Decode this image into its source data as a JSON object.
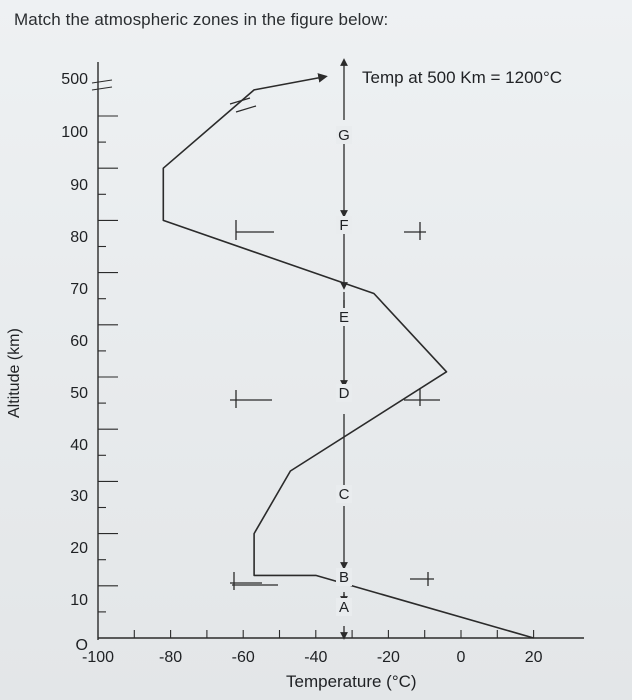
{
  "question": "Match the atmospheric zones in the figure below:",
  "note": "Temp at 500 Km = 1200°C",
  "ylabel": "Altitude (km)",
  "xlabel": "Temperature (°C)",
  "colors": {
    "line": "#2b2b2b",
    "background": "#eceff1",
    "text": "#1f2124"
  },
  "chart_data": {
    "type": "line",
    "title": "",
    "xlabel": "Temperature (°C)",
    "ylabel": "Altitude (km)",
    "x_ticks": [
      -100,
      -80,
      -60,
      -40,
      -20,
      0,
      20
    ],
    "y_ticks": [
      "500",
      "100",
      "90",
      "80",
      "70",
      "60",
      "50",
      "40",
      "30",
      "20",
      "10",
      "O"
    ],
    "annotation": "Temp at 500 Km = 1200°C",
    "series": [
      {
        "values_note": "Temperature profile (x = °C, y = km; top segment heads toward 500 km)",
        "points": [
          {
            "x": 20,
            "y": 0
          },
          {
            "x": -40,
            "y": 12
          },
          {
            "x": -57,
            "y": 12
          },
          {
            "x": -57,
            "y": 20
          },
          {
            "x": -47,
            "y": 32
          },
          {
            "x": -4,
            "y": 51
          },
          {
            "x": -24,
            "y": 66
          },
          {
            "x": -82,
            "y": 80
          },
          {
            "x": -82,
            "y": 90
          },
          {
            "x": -57,
            "y": 105
          },
          {
            "x": -38,
            "y": 500
          }
        ]
      }
    ],
    "zone_labels": [
      "A",
      "B",
      "C",
      "D",
      "E",
      "F",
      "G"
    ]
  }
}
